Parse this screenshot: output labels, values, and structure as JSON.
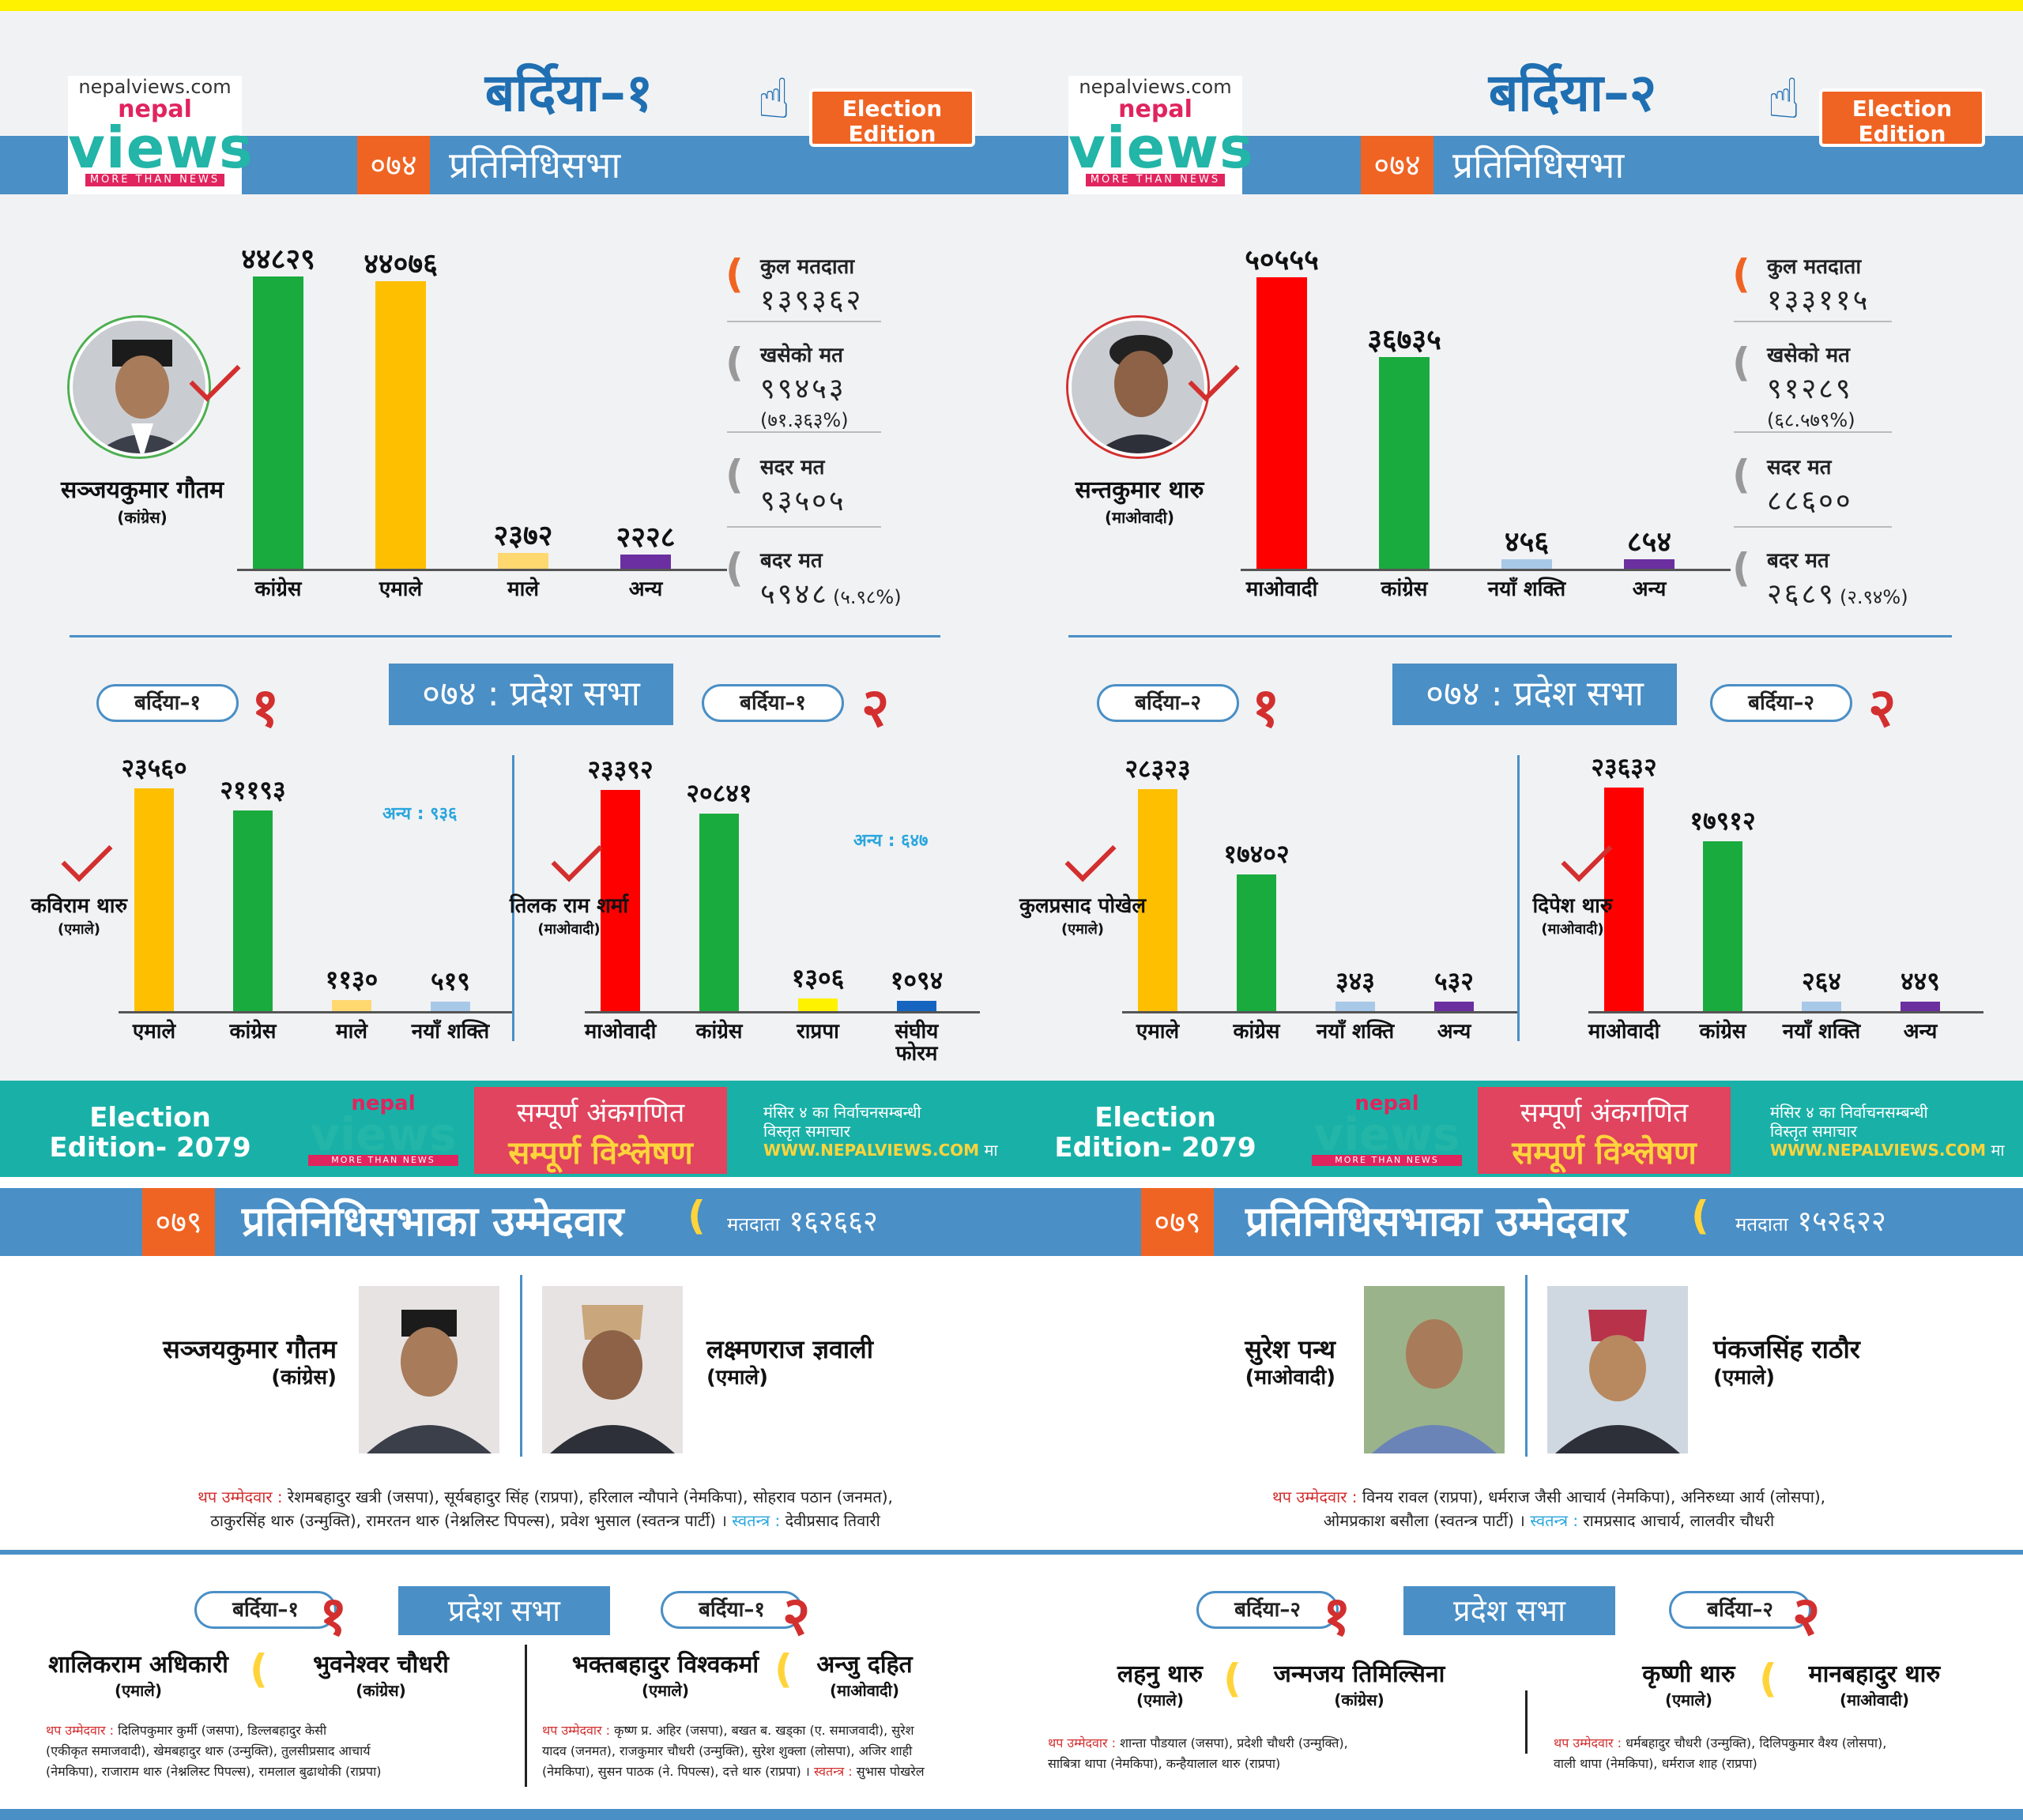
{
  "brand": {
    "domain": "nepalviews.com",
    "nepal": "nepal",
    "views": "views",
    "tagline": "MORE THAN NEWS",
    "edition": "Election Edition"
  },
  "colors": {
    "congress": "#1aab3f",
    "uml": "#fdbf00",
    "maoist": "#ff0000",
    "male": "#ffd870",
    "anya": "#6b2fa0",
    "nayashakti": "#a8c8e8",
    "rpp": "#fff200",
    "sanghiya": "#1565c0",
    "accent": "#f06423",
    "band": "#4a8fc6"
  },
  "left": {
    "title": "बर्दिया–१",
    "fpn": "०७४",
    "fptp": "प्रतिनिधिसभा",
    "winner": {
      "name": "सञ्जयकुमार गौतम",
      "party": "(कांग्रेस)"
    },
    "stats": {
      "total_label": "कुल मतदाता",
      "total": "१३९३६२",
      "cast_label": "खसेको मत",
      "cast": "९९४५३",
      "cast_pct": "(७१.३६३%)",
      "valid_label": "सदर मत",
      "valid": "९३५०५",
      "invalid_label": "बदर मत",
      "invalid": "५९४८",
      "invalid_pct": "(५.९८%)"
    },
    "prov_title": "०७४ : प्रदेश सभा",
    "p1": {
      "pill": "बर्दिया–१",
      "num": "१",
      "winner": "कविराम थारु",
      "party": "(एमाले)",
      "anya": "अन्य : ९३६"
    },
    "p2": {
      "pill": "बर्दिया–१",
      "num": "२",
      "winner": "तिलक राम शर्मा",
      "party": "(माओवादी)",
      "anya": "अन्य : ६४७"
    }
  },
  "right": {
    "title": "बर्दिया–२",
    "fpn": "०७४",
    "fptp": "प्रतिनिधिसभा",
    "winner": {
      "name": "सन्तकुमार थारु",
      "party": "(माओवादी)"
    },
    "stats": {
      "total_label": "कुल मतदाता",
      "total": "१३३११५",
      "cast_label": "खसेको मत",
      "cast": "९१२८९",
      "cast_pct": "(६८.५७९%)",
      "valid_label": "सदर मत",
      "valid": "८८६००",
      "invalid_label": "बदर मत",
      "invalid": "२६८९",
      "invalid_pct": "(२.९४%)"
    },
    "prov_title": "०७४ : प्रदेश सभा",
    "p1": {
      "pill": "बर्दिया–२",
      "num": "१",
      "winner": "कुलप्रसाद पोखेल",
      "party": "(एमाले)"
    },
    "p2": {
      "pill": "बर्दिया–२",
      "num": "२",
      "winner": "दिपेश थारु",
      "party": "(माओवादी)"
    }
  },
  "chart_data": [
    {
      "type": "bar",
      "id": "b1-federal",
      "categories": [
        "कांग्रेस",
        "एमाले",
        "माले",
        "अन्य"
      ],
      "values": [
        44829,
        44076,
        2372,
        2228
      ],
      "value_labels": [
        "४४८२९",
        "४४०७६",
        "२३७२",
        "२२२८"
      ],
      "colors": [
        "#1aab3f",
        "#fdbf00",
        "#ffd870",
        "#6b2fa0"
      ]
    },
    {
      "type": "bar",
      "id": "b1-p1",
      "categories": [
        "एमाले",
        "कांग्रेस",
        "माले",
        "नयाँ शक्ति"
      ],
      "values": [
        23560,
        21193,
        1130,
        519
      ],
      "value_labels": [
        "२३५६०",
        "२११९३",
        "११३०",
        "५१९"
      ],
      "colors": [
        "#fdbf00",
        "#1aab3f",
        "#ffd870",
        "#a8c8e8"
      ]
    },
    {
      "type": "bar",
      "id": "b1-p2",
      "categories": [
        "माओवादी",
        "कांग्रेस",
        "राप्रपा",
        "संघीय फोरम"
      ],
      "values": [
        23392,
        20841,
        1306,
        1094
      ],
      "value_labels": [
        "२३३९२",
        "२०८४१",
        "१३०६",
        "१०९४"
      ],
      "colors": [
        "#ff0000",
        "#1aab3f",
        "#fff200",
        "#1565c0"
      ]
    },
    {
      "type": "bar",
      "id": "b2-federal",
      "categories": [
        "माओवादी",
        "कांग्रेस",
        "नयाँ शक्ति",
        "अन्य"
      ],
      "values": [
        50555,
        36735,
        456,
        854
      ],
      "value_labels": [
        "५०५५५",
        "३६७३५",
        "४५६",
        "८५४"
      ],
      "colors": [
        "#ff0000",
        "#1aab3f",
        "#a8c8e8",
        "#6b2fa0"
      ]
    },
    {
      "type": "bar",
      "id": "b2-p1",
      "categories": [
        "एमाले",
        "कांग्रेस",
        "नयाँ शक्ति",
        "अन्य"
      ],
      "values": [
        28323,
        17402,
        343,
        532
      ],
      "value_labels": [
        "२८३२३",
        "१७४०२",
        "३४३",
        "५३२"
      ],
      "colors": [
        "#fdbf00",
        "#1aab3f",
        "#a8c8e8",
        "#6b2fa0"
      ]
    },
    {
      "type": "bar",
      "id": "b2-p2",
      "categories": [
        "माओवादी",
        "कांग्रेस",
        "नयाँ शक्ति",
        "अन्य"
      ],
      "values": [
        23632,
        17912,
        264,
        449
      ],
      "value_labels": [
        "२३६३२",
        "१७९१२",
        "२६४",
        "४४९"
      ],
      "colors": [
        "#ff0000",
        "#1aab3f",
        "#a8c8e8",
        "#6b2fa0"
      ]
    }
  ],
  "banner": {
    "ee1": "Election",
    "ee2": "Edition- 2079",
    "pink1": "सम्पूर्ण अंकगणित",
    "pink2": "सम्पूर्ण विश्लेषण",
    "r1": "मंसिर ४ का निर्वाचनसम्बन्धी",
    "r2": "विस्तृत समाचार",
    "r3": "WWW.NEPALVIEWS.COM",
    "r4": "मा"
  },
  "cand": {
    "left": {
      "num": "०७९",
      "title": "प्रतिनिधिसभाका उम्मेदवार",
      "voters_label": "मतदाता",
      "voters": "१६२६६२",
      "c1": {
        "name": "सञ्जयकुमार गौतम",
        "party": "(कांग्रेस)"
      },
      "c2": {
        "name": "लक्ष्मणराज ज्ञवाली",
        "party": "(एमाले)"
      },
      "others_label": "थप उम्मेदवार :",
      "others": "रेशमबहादुर खत्री (जसपा), सूर्यबहादुर सिंह (राप्रपा), हरिलाल न्यौपाने (नेमकिपा), सोहराव पठान (जनमत),",
      "others2": "ठाकुरसिंह थारु (उन्मुक्ति), रामरतन थारु (नेश्नलिस्ट पिपल्स), प्रवेश भुसाल (स्वतन्त्र पार्टी) ।",
      "ind_label": "स्वतन्त्र :",
      "ind": "देवीप्रसाद तिवारी"
    },
    "right": {
      "num": "०७९",
      "title": "प्रतिनिधिसभाका उम्मेदवार",
      "voters_label": "मतदाता",
      "voters": "१५२६२२",
      "c1": {
        "name": "सुरेश पन्थ",
        "party": "(माओवादी)"
      },
      "c2": {
        "name": "पंकजसिंह राठौर",
        "party": "(एमाले)"
      },
      "others_label": "थप उम्मेदवार :",
      "others": "विनय रावल (राप्रपा), धर्मराज जैसी आचार्य (नेमकिपा), अनिरुध्या आर्य (लोसपा),",
      "others2": "ओमप्रकाश बसौला (स्वतन्त्र पार्टी) ।",
      "ind_label": "स्वतन्त्र :",
      "ind": "रामप्रसाद आचार्य, लालवीर चौधरी"
    }
  },
  "prov79": {
    "title": "प्रदेश सभा",
    "l1": {
      "pill": "बर्दिया–१",
      "num": "१",
      "a": "शालिकराम अधिकारी",
      "ap": "(एमाले)",
      "b": "भुवनेश्वर चौधरी",
      "bp": "(कांग्रेस)",
      "ol": "थप उम्मेदवार :",
      "o1": "दिलिपकुमार कुर्मी (जसपा), डिल्लबहादुर केसी",
      "o2": "(एकीकृत समाजवादी), खेमबहादुर थारु (उन्मुक्ति), तुलसीप्रसाद आचार्य",
      "o3": "(नेमकिपा), राजाराम थारु (नेश्नलिस्ट पिपल्स), रामलाल बुढाथोकी (राप्रपा)"
    },
    "l2": {
      "pill": "बर्दिया–१",
      "num": "२",
      "a": "भक्तबहादुर विश्वकर्मा",
      "ap": "(एमाले)",
      "b": "अन्जु दहित",
      "bp": "(माओवादी)",
      "ol": "थप उम्मेदवार :",
      "o1": "कृष्ण प्र. अहिर (जसपा), बखत ब. खड्का (ए. समाजवादी), सुरेश",
      "o2": "यादव (जनमत), राजकुमार चौधरी (उन्मुक्ति), सुरेश शुक्ला (लोसपा), अजिर शाही",
      "o3": "(नेमकिपा), सुसन पाठक (ने. पिपल्स), दत्ते थारु (राप्रपा) ।",
      "sl": "स्वतन्त्र :",
      "s": "सुभास पोखरेल"
    },
    "r1": {
      "pill": "बर्दिया–२",
      "num": "१",
      "a": "लहनु थारु",
      "ap": "(एमाले)",
      "b": "जन्मजय तिमिल्सिना",
      "bp": "(कांग्रेस)",
      "ol": "थप उम्मेदवार :",
      "o1": "शान्ता पौडयाल (जसपा), प्रदेशी चौधरी (उन्मुक्ति),",
      "o2": "साबित्रा थापा (नेमकिपा), कन्हैयालाल थारु (राप्रपा)"
    },
    "r2": {
      "pill": "बर्दिया–२",
      "num": "२",
      "a": "कृष्णी थारु",
      "ap": "(एमाले)",
      "b": "मानबहादुर थारु",
      "bp": "(माओवादी)",
      "ol": "थप उम्मेदवार :",
      "o1": "धर्मबहादुर चौधरी (उन्मुक्ति), दिलिपकुमार वैश्य (लोसपा),",
      "o2": "वाली थापा (नेमकिपा), धर्मराज शाह (राप्रपा)"
    }
  }
}
